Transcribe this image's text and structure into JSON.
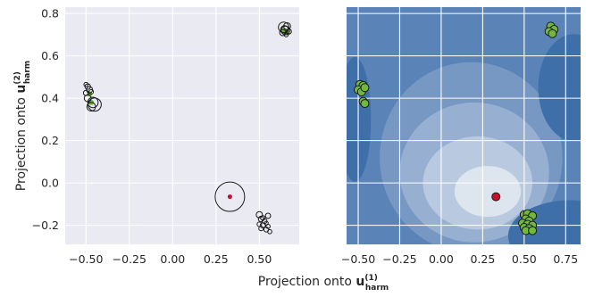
{
  "chart_data": [
    {
      "type": "scatter",
      "panel": "left",
      "xlim": [
        -0.62,
        0.73
      ],
      "ylim": [
        -0.29,
        0.83
      ],
      "grid": true,
      "background": "#eaeaf2",
      "xticks": [
        {
          "value": -0.5,
          "label": "−0.50"
        },
        {
          "value": -0.25,
          "label": "−0.25"
        },
        {
          "value": 0.0,
          "label": "0.00"
        },
        {
          "value": 0.25,
          "label": "0.25"
        },
        {
          "value": 0.5,
          "label": "0.50"
        }
      ],
      "yticks": [
        {
          "value": -0.2,
          "label": "−0.2"
        },
        {
          "value": 0.0,
          "label": "0.0"
        },
        {
          "value": 0.2,
          "label": "0.2"
        },
        {
          "value": 0.4,
          "label": "0.4"
        },
        {
          "value": 0.6,
          "label": "0.6"
        },
        {
          "value": 0.8,
          "label": "0.8"
        }
      ],
      "ylabel_main": "Projection onto ",
      "ylabel_vec": "u",
      "ylabel_sup": "(2)",
      "ylabel_sub": "harm",
      "green_points": [
        {
          "x": -0.47,
          "y": 0.38
        },
        {
          "x": -0.48,
          "y": 0.42
        },
        {
          "x": 0.64,
          "y": 0.72
        },
        {
          "x": 0.66,
          "y": 0.71
        }
      ],
      "red_points": [
        {
          "x": 0.33,
          "y": -0.065
        }
      ],
      "open_circles": [
        {
          "x": -0.5,
          "y": 0.465,
          "r": 0.012
        },
        {
          "x": -0.49,
          "y": 0.455,
          "r": 0.016
        },
        {
          "x": -0.48,
          "y": 0.44,
          "r": 0.018
        },
        {
          "x": -0.5,
          "y": 0.425,
          "r": 0.015
        },
        {
          "x": -0.47,
          "y": 0.43,
          "r": 0.013
        },
        {
          "x": -0.49,
          "y": 0.4,
          "r": 0.02
        },
        {
          "x": -0.46,
          "y": 0.38,
          "r": 0.03
        },
        {
          "x": -0.45,
          "y": 0.37,
          "r": 0.038
        },
        {
          "x": -0.47,
          "y": 0.36,
          "r": 0.025
        },
        {
          "x": 0.64,
          "y": 0.735,
          "r": 0.03
        },
        {
          "x": 0.65,
          "y": 0.72,
          "r": 0.025
        },
        {
          "x": 0.66,
          "y": 0.74,
          "r": 0.02
        },
        {
          "x": 0.635,
          "y": 0.71,
          "r": 0.018
        },
        {
          "x": 0.67,
          "y": 0.715,
          "r": 0.015
        },
        {
          "x": 0.655,
          "y": 0.7,
          "r": 0.012
        },
        {
          "x": 0.645,
          "y": 0.725,
          "r": 0.022
        },
        {
          "x": 0.33,
          "y": -0.065,
          "r": 0.085
        },
        {
          "x": 0.5,
          "y": -0.15,
          "r": 0.018
        },
        {
          "x": 0.55,
          "y": -0.155,
          "r": 0.015
        },
        {
          "x": 0.51,
          "y": -0.17,
          "r": 0.016
        },
        {
          "x": 0.53,
          "y": -0.18,
          "r": 0.014
        },
        {
          "x": 0.5,
          "y": -0.195,
          "r": 0.013
        },
        {
          "x": 0.52,
          "y": -0.2,
          "r": 0.015
        },
        {
          "x": 0.55,
          "y": -0.205,
          "r": 0.012
        },
        {
          "x": 0.51,
          "y": -0.215,
          "r": 0.013
        },
        {
          "x": 0.54,
          "y": -0.22,
          "r": 0.014
        },
        {
          "x": 0.56,
          "y": -0.23,
          "r": 0.012
        },
        {
          "x": 0.52,
          "y": -0.165,
          "r": 0.013
        },
        {
          "x": 0.54,
          "y": -0.19,
          "r": 0.011
        }
      ]
    },
    {
      "type": "scatter",
      "panel": "right",
      "xlim": [
        -0.57,
        0.84
      ],
      "ylim": [
        -0.29,
        0.83
      ],
      "grid": true,
      "background": "contour-blue",
      "xticks": [
        {
          "value": -0.5,
          "label": "−0.50"
        },
        {
          "value": -0.25,
          "label": "−0.25"
        },
        {
          "value": 0.0,
          "label": "0.00"
        },
        {
          "value": 0.25,
          "label": "0.25"
        },
        {
          "value": 0.5,
          "label": "0.50"
        },
        {
          "value": 0.75,
          "label": "0.75"
        }
      ],
      "green_points": [
        {
          "x": -0.49,
          "y": 0.465
        },
        {
          "x": -0.47,
          "y": 0.46
        },
        {
          "x": -0.5,
          "y": 0.44
        },
        {
          "x": -0.48,
          "y": 0.43
        },
        {
          "x": -0.46,
          "y": 0.45
        },
        {
          "x": -0.47,
          "y": 0.385
        },
        {
          "x": -0.46,
          "y": 0.375
        },
        {
          "x": 0.66,
          "y": 0.74
        },
        {
          "x": 0.68,
          "y": 0.725
        },
        {
          "x": 0.65,
          "y": 0.715
        },
        {
          "x": 0.67,
          "y": 0.705
        },
        {
          "x": 0.5,
          "y": -0.15
        },
        {
          "x": 0.52,
          "y": -0.145
        },
        {
          "x": 0.55,
          "y": -0.155
        },
        {
          "x": 0.51,
          "y": -0.17
        },
        {
          "x": 0.53,
          "y": -0.18
        },
        {
          "x": 0.49,
          "y": -0.19
        },
        {
          "x": 0.52,
          "y": -0.195
        },
        {
          "x": 0.55,
          "y": -0.2
        },
        {
          "x": 0.5,
          "y": -0.21
        },
        {
          "x": 0.53,
          "y": -0.215
        },
        {
          "x": 0.51,
          "y": -0.225
        },
        {
          "x": 0.55,
          "y": -0.225
        }
      ],
      "red_points": [
        {
          "x": 0.33,
          "y": -0.065
        }
      ]
    }
  ],
  "xlabel_main": "Projection onto ",
  "xlabel_vec": "u",
  "xlabel_sup": "(1)",
  "xlabel_sub": "harm",
  "colors": {
    "panel_bg": "#eaeaf2",
    "grid": "#ffffff",
    "green_fill": "#6fba3a",
    "red_fill": "#c8102e",
    "marker_edge": "#1a1a1a",
    "contour_levels": [
      "#3f6fa8",
      "#5a84b8",
      "#7898c4",
      "#97b0d2",
      "#b8c9e0",
      "#dde5ef"
    ]
  }
}
